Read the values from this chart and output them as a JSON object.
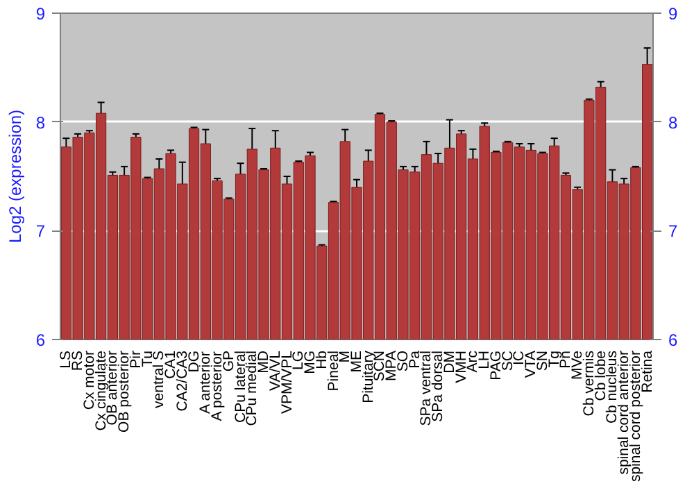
{
  "chart_data": {
    "type": "bar",
    "ylabel": "Log2 (expression)",
    "categories": [
      "LS",
      "RS",
      "Cx motor",
      "Cx cingulate",
      "OB anterior",
      "OB posterior",
      "Pir",
      "Tu",
      "ventral S",
      "CA1",
      "CA2/CA3",
      "DG",
      "A anterior",
      "A posterior",
      "GP",
      "CPu lateral",
      "CPu medial",
      "MD",
      "VA/VL",
      "VPM/VPL",
      "LG",
      "MG",
      "Hb",
      "Pineal",
      "M",
      "ME",
      "Pituitary",
      "SCN",
      "MPA",
      "SO",
      "Pa",
      "SPa ventral",
      "SPa dorsal",
      "DM",
      "VMH",
      "Arc",
      "LH",
      "PAG",
      "SC",
      "IC",
      "VTA",
      "SN",
      "Tg",
      "Pn",
      "MVe",
      "Cb vermis",
      "Cb lobe",
      "Cb nucleus",
      "spinal cord anterior",
      "spinal cord posterior",
      "Retina"
    ],
    "values": [
      7.77,
      7.86,
      7.9,
      8.08,
      7.51,
      7.51,
      7.86,
      7.48,
      7.57,
      7.71,
      7.43,
      7.94,
      7.8,
      7.46,
      7.29,
      7.52,
      7.75,
      7.56,
      7.76,
      7.43,
      7.63,
      7.69,
      6.86,
      7.26,
      7.82,
      7.4,
      7.64,
      8.07,
      8.0,
      7.56,
      7.54,
      7.7,
      7.62,
      7.76,
      7.89,
      7.66,
      7.96,
      7.72,
      7.81,
      7.77,
      7.74,
      7.71,
      7.78,
      7.51,
      7.38,
      8.2,
      8.32,
      7.45,
      7.43,
      7.58,
      8.53
    ],
    "errors": [
      0.08,
      0.03,
      0.02,
      0.1,
      0.03,
      0.08,
      0.03,
      0.01,
      0.09,
      0.03,
      0.2,
      0.01,
      0.13,
      0.02,
      0.01,
      0.1,
      0.19,
      0.01,
      0.16,
      0.07,
      0.01,
      0.03,
      0.01,
      0.01,
      0.11,
      0.07,
      0.1,
      0.01,
      0.01,
      0.03,
      0.05,
      0.12,
      0.09,
      0.26,
      0.03,
      0.09,
      0.03,
      0.01,
      0.01,
      0.03,
      0.06,
      0.01,
      0.07,
      0.02,
      0.02,
      0.01,
      0.05,
      0.11,
      0.05,
      0.01,
      0.15
    ],
    "color": "#b33a3a",
    "ylim": [
      6,
      9
    ],
    "yticks": [
      6,
      7,
      8,
      9
    ],
    "y2lim": [
      6,
      9
    ],
    "y2ticks": [
      6,
      7,
      8,
      9
    ],
    "grid": "y"
  }
}
